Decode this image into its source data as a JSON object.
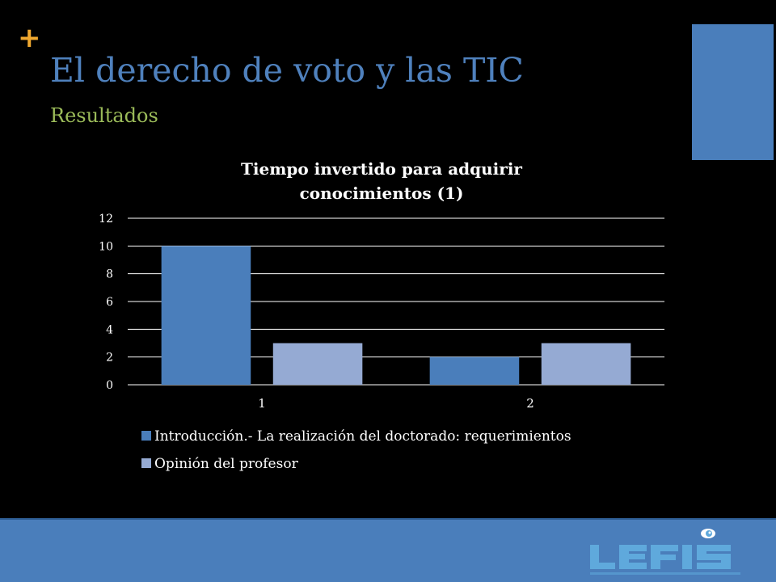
{
  "slide": {
    "plus_symbol": "+",
    "title": "El derecho de voto y las TIC",
    "subtitle": "Resultados"
  },
  "logo": {
    "text": "LEFIS",
    "icon": "eye-icon",
    "color": "#5fa9dc"
  },
  "colors": {
    "title": "#4f81bd",
    "subtitle": "#9bbb59",
    "plus": "#f0a830",
    "series1": "#4a7ebb",
    "series2": "#95aad3"
  },
  "chart_data": {
    "type": "bar",
    "title": "Tiempo invertido para adquirir conocimientos (1)",
    "title_lines": [
      "Tiempo invertido para adquirir",
      "conocimientos (1)"
    ],
    "categories": [
      "1",
      "2"
    ],
    "series": [
      {
        "name": "Introducción.- La realización del doctorado: requerimientos",
        "values": [
          10,
          2
        ],
        "color": "#4a7ebb"
      },
      {
        "name": "Opinión del profesor",
        "values": [
          3,
          3
        ],
        "color": "#95aad3"
      }
    ],
    "ylim": [
      0,
      12
    ],
    "yticks": [
      0,
      2,
      4,
      6,
      8,
      10,
      12
    ],
    "grid": true,
    "legend": "bottom"
  }
}
